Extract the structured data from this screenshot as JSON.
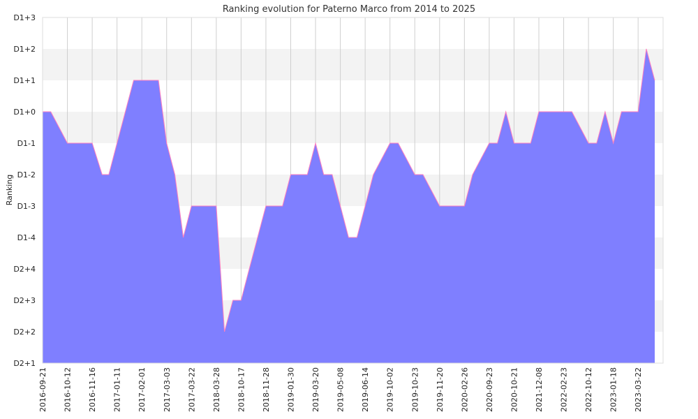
{
  "chart_data": {
    "type": "area",
    "title": "Ranking evolution for Paterno Marco from 2014 to 2025",
    "xlabel": "",
    "ylabel": "Ranking",
    "y_tick_labels": [
      "D2+1",
      "D2+2",
      "D2+3",
      "D2+4",
      "D1-4",
      "D1-3",
      "D1-2",
      "D1-1",
      "D1+0",
      "D1+1",
      "D1+2",
      "D1+3"
    ],
    "ylim": [
      0,
      11
    ],
    "x_tick_labels": [
      "2016-09-21",
      "2016-10-12",
      "2016-11-16",
      "2017-01-11",
      "2017-02-01",
      "2017-03-03",
      "2017-03-22",
      "2018-03-28",
      "2018-10-17",
      "2018-11-28",
      "2019-01-30",
      "2019-03-20",
      "2019-05-08",
      "2019-06-14",
      "2019-10-02",
      "2019-10-23",
      "2019-11-20",
      "2020-02-26",
      "2020-09-23",
      "2020-10-21",
      "2021-12-08",
      "2022-02-23",
      "2022-10-12",
      "2023-01-18",
      "2023-03-22"
    ],
    "grid": true,
    "fill_color": "#7f7fff",
    "line_color": "#ff7fbf",
    "series": [
      {
        "x": [
          0,
          0.33,
          1,
          2,
          2.4,
          2.67,
          3,
          3.67,
          4,
          4.67,
          5,
          5.33,
          5.67,
          6,
          7,
          7.33,
          7.67,
          8,
          8.33,
          9,
          9.67,
          10,
          10.67,
          11,
          11.33,
          11.67,
          12,
          12.33,
          12.67,
          13,
          13.33,
          14,
          14.33,
          15,
          15.33,
          16,
          16.33,
          17,
          17.33,
          18,
          18.33,
          18.67,
          19,
          19.67,
          20,
          20.33,
          20.67,
          21,
          21.33,
          22,
          22.33,
          22.67,
          23,
          23.33,
          23.67,
          24,
          24.33,
          24.67
        ],
        "y": [
          8,
          8,
          7,
          7,
          6,
          6,
          7,
          9,
          9,
          9,
          7,
          6,
          4,
          5,
          5,
          1,
          2,
          2,
          3,
          5,
          5,
          6,
          6,
          7,
          6,
          6,
          5,
          4,
          4,
          5,
          6,
          7,
          7,
          6,
          6,
          5,
          5,
          5,
          6,
          7,
          7,
          8,
          7,
          7,
          8,
          8,
          8,
          8,
          8,
          7,
          7,
          8,
          7,
          8,
          8,
          8,
          10,
          9
        ]
      }
    ]
  }
}
